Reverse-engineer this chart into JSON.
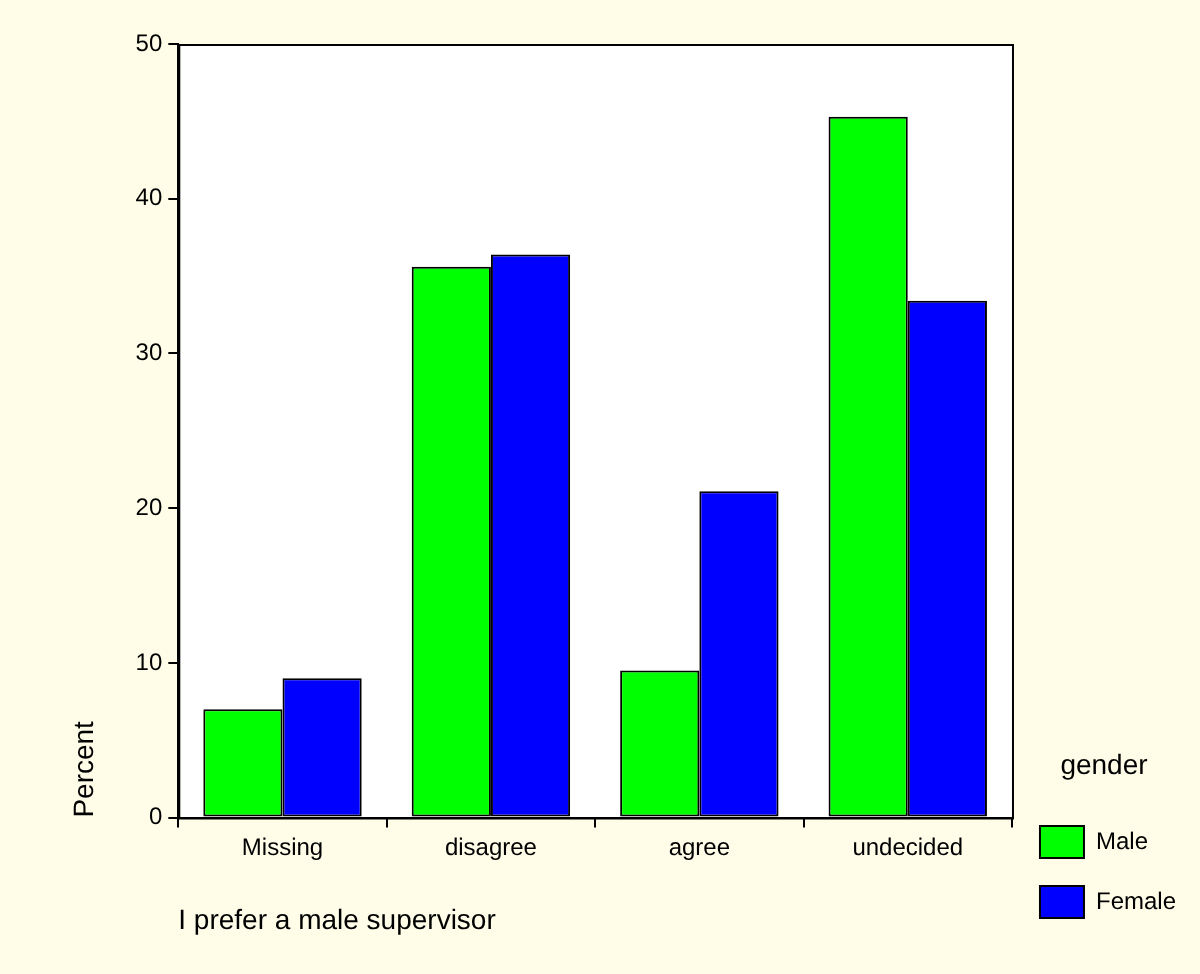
{
  "chart_data": {
    "type": "bar",
    "xlabel": "I prefer a male supervisor",
    "ylabel": "Percent",
    "legend_title": "gender",
    "categories": [
      "Missing",
      "disagree",
      "agree",
      "undecided"
    ],
    "series": [
      {
        "name": "Male",
        "color": "#00ff00",
        "values": [
          7.0,
          35.6,
          9.5,
          45.3
        ]
      },
      {
        "name": "Female",
        "color": "#0000ff",
        "values": [
          9.0,
          36.4,
          21.1,
          33.4
        ]
      }
    ],
    "ylim": [
      0,
      50
    ],
    "yticks": [
      0,
      10,
      20,
      30,
      40,
      50
    ],
    "grid": false,
    "legend": "right"
  }
}
